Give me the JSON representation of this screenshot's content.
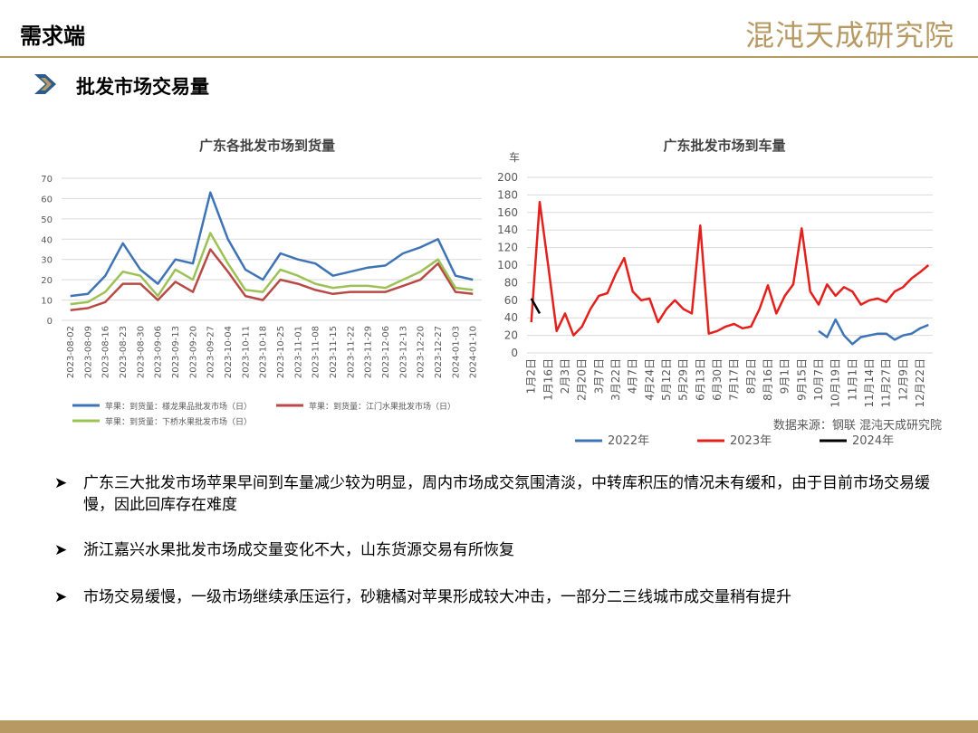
{
  "header": {
    "title": "需求端",
    "logo": "混沌天成研究院",
    "section": "批发市场交易量"
  },
  "chart_data": [
    {
      "type": "line",
      "title": "广东各批发市场到货量",
      "categories": [
        "2023-08-02",
        "2023-08-09",
        "2023-08-16",
        "2023-08-23",
        "2023-08-30",
        "2023-09-06",
        "2023-09-13",
        "2023-09-20",
        "2023-09-27",
        "2023-10-04",
        "2023-10-11",
        "2023-10-18",
        "2023-10-25",
        "2023-11-01",
        "2023-11-08",
        "2023-11-15",
        "2023-11-22",
        "2023-11-29",
        "2023-12-06",
        "2023-12-13",
        "2023-12-20",
        "2023-12-27",
        "2024-01-03",
        "2024-01-10"
      ],
      "series": [
        {
          "name": "苹果：到货量：様龙果品批发市场（日）",
          "color": "#3e74b5",
          "values": [
            12,
            13,
            22,
            38,
            25,
            18,
            30,
            28,
            63,
            40,
            25,
            20,
            33,
            30,
            28,
            22,
            24,
            26,
            27,
            33,
            36,
            40,
            22,
            20
          ]
        },
        {
          "name": "苹果：到货量：江门水果批发市场（日）",
          "color": "#b84a45",
          "values": [
            5,
            6,
            9,
            18,
            18,
            10,
            19,
            14,
            35,
            24,
            12,
            10,
            20,
            18,
            15,
            13,
            14,
            14,
            14,
            17,
            20,
            28,
            14,
            13
          ]
        },
        {
          "name": "苹果：到货量：下桥水果批发市场（日）",
          "color": "#9cc255",
          "values": [
            8,
            9,
            14,
            24,
            22,
            12,
            25,
            20,
            43,
            28,
            15,
            14,
            25,
            22,
            18,
            16,
            17,
            17,
            16,
            20,
            24,
            30,
            16,
            15
          ]
        }
      ],
      "ylim": [
        0,
        70
      ],
      "yticks": [
        0,
        10,
        20,
        30,
        40,
        50,
        60,
        70
      ]
    },
    {
      "type": "line",
      "title": "广东批发市场到车量",
      "y_label": "车",
      "source": "数据来源：钢联   混沌天成研究院",
      "categories": [
        "1月2日",
        null,
        "1月16日",
        null,
        "2月3日",
        null,
        "2月20日",
        null,
        "3月7日",
        null,
        "3月22日",
        null,
        "4月7日",
        null,
        "4月24日",
        null,
        "5月12日",
        null,
        "5月29日",
        null,
        "6月13日",
        null,
        "6月30日",
        null,
        "7月17日",
        null,
        "8月2日",
        null,
        "8月16日",
        null,
        "9月1日",
        null,
        "9月15日",
        null,
        "10月7日",
        null,
        "10月19日",
        null,
        "11月1日",
        null,
        "11月14日",
        null,
        "11月27日",
        null,
        "12月9日",
        null,
        "12月22日",
        null
      ],
      "series": [
        {
          "name": "2022年",
          "color": "#3e74b5",
          "values": [
            null,
            null,
            null,
            null,
            null,
            null,
            null,
            null,
            null,
            null,
            null,
            null,
            null,
            null,
            null,
            null,
            null,
            null,
            null,
            null,
            null,
            null,
            null,
            null,
            null,
            null,
            null,
            null,
            null,
            null,
            null,
            null,
            null,
            null,
            25,
            18,
            38,
            20,
            10,
            18,
            20,
            22,
            22,
            15,
            20,
            22,
            28,
            32
          ]
        },
        {
          "name": "2023年",
          "color": "#e3201b",
          "values": [
            35,
            172,
            100,
            25,
            45,
            20,
            30,
            50,
            65,
            68,
            90,
            108,
            70,
            60,
            62,
            35,
            50,
            60,
            50,
            45,
            145,
            22,
            25,
            30,
            33,
            28,
            30,
            50,
            77,
            45,
            65,
            78,
            142,
            70,
            55,
            78,
            65,
            75,
            70,
            55,
            60,
            62,
            58,
            70,
            75,
            85,
            92,
            100
          ]
        },
        {
          "name": "2024年",
          "color": "#000000",
          "values": [
            62,
            45,
            null,
            null,
            null,
            null,
            null,
            null,
            null,
            null,
            null,
            null,
            null,
            null,
            null,
            null,
            null,
            null,
            null,
            null,
            null,
            null,
            null,
            null,
            null,
            null,
            null,
            null,
            null,
            null,
            null,
            null,
            null,
            null,
            null,
            null,
            null,
            null,
            null,
            null,
            null,
            null,
            null,
            null,
            null,
            null,
            null,
            null
          ]
        }
      ],
      "ylim": [
        0,
        200
      ],
      "yticks": [
        0,
        20,
        40,
        60,
        80,
        100,
        120,
        140,
        160,
        180,
        200
      ]
    }
  ],
  "bullets": [
    "广东三大批发市场苹果早间到车量减少较为明显，周内市场成交氛围清淡，中转库积压的情况未有缓和，由于目前市场交易缓慢，因此回库存在难度",
    "浙江嘉兴水果批发市场成交量变化不大，山东货源交易有所恢复",
    "市场交易缓慢，一级市场继续承压运行，砂糖橘对苹果形成较大冲击，一部分二三线城市成交量稍有提升"
  ]
}
